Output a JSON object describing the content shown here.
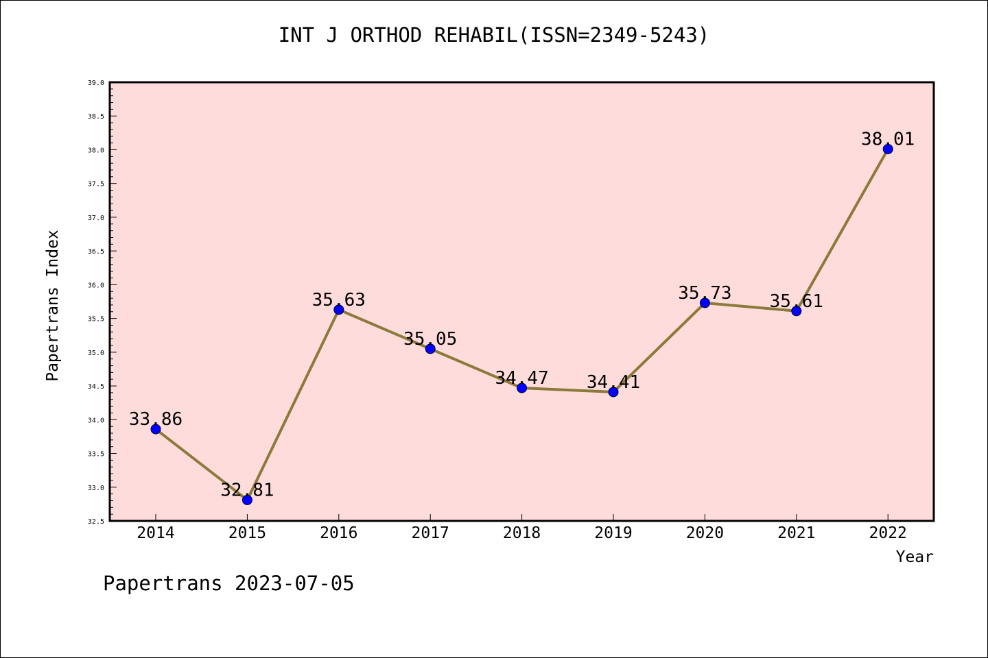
{
  "chart_data": {
    "type": "line",
    "title": "INT J ORTHOD REHABIL(ISSN=2349-5243)",
    "xlabel": "Year",
    "ylabel": "Papertrans Index",
    "categories": [
      "2014",
      "2015",
      "2016",
      "2017",
      "2018",
      "2019",
      "2020",
      "2021",
      "2022"
    ],
    "values": [
      33.86,
      32.81,
      35.63,
      35.05,
      34.47,
      34.41,
      35.73,
      35.61,
      38.01
    ],
    "data_labels": [
      "33.86",
      "32.81",
      "35.63",
      "35.05",
      "34.47",
      "34.41",
      "35.73",
      "35.61",
      "38.01"
    ],
    "ylim": [
      32.5,
      39.0
    ],
    "ytick_labels": [
      "32.5",
      "33.0",
      "33.5",
      "34.0",
      "34.5",
      "35.0",
      "35.5",
      "36.0",
      "36.5",
      "37.0",
      "37.5",
      "38.0",
      "38.5",
      "39.0"
    ],
    "grid": false,
    "colors": {
      "line": "#8b7a3a",
      "marker": "#0000ff",
      "plot_background": "#ffdcdc",
      "axis": "#000000"
    }
  },
  "footer": "Papertrans 2023-07-05"
}
